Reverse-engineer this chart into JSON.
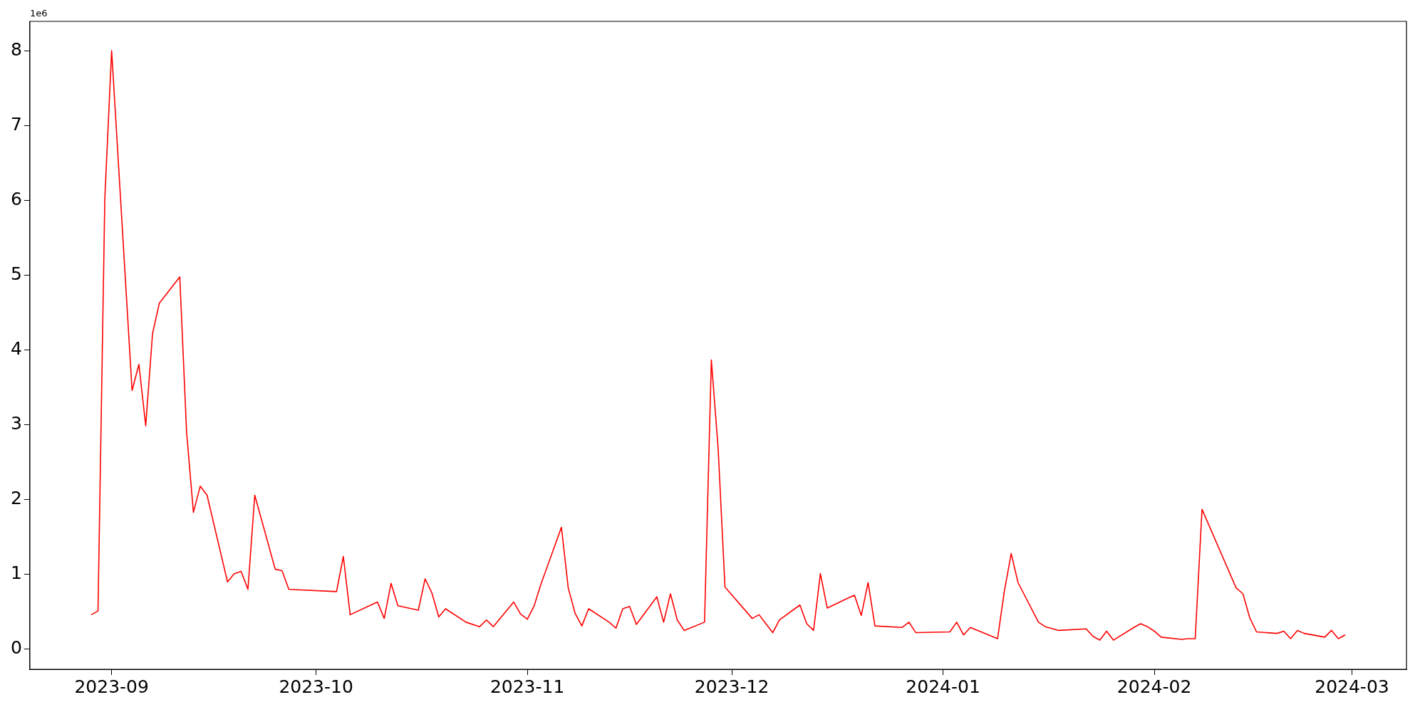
{
  "chart_data": {
    "type": "line",
    "x": [
      "2023-08-29",
      "2023-08-30",
      "2023-08-31",
      "2023-09-01",
      "2023-09-04",
      "2023-09-05",
      "2023-09-06",
      "2023-09-07",
      "2023-09-08",
      "2023-09-11",
      "2023-09-12",
      "2023-09-13",
      "2023-09-14",
      "2023-09-15",
      "2023-09-18",
      "2023-09-19",
      "2023-09-20",
      "2023-09-21",
      "2023-09-22",
      "2023-09-25",
      "2023-09-26",
      "2023-09-27",
      "2023-10-04",
      "2023-10-05",
      "2023-10-06",
      "2023-10-10",
      "2023-10-11",
      "2023-10-12",
      "2023-10-13",
      "2023-10-16",
      "2023-10-17",
      "2023-10-18",
      "2023-10-19",
      "2023-10-20",
      "2023-10-23",
      "2023-10-25",
      "2023-10-26",
      "2023-10-27",
      "2023-10-30",
      "2023-10-31",
      "2023-11-01",
      "2023-11-02",
      "2023-11-03",
      "2023-11-06",
      "2023-11-07",
      "2023-11-08",
      "2023-11-09",
      "2023-11-10",
      "2023-11-13",
      "2023-11-14",
      "2023-11-15",
      "2023-11-16",
      "2023-11-17",
      "2023-11-20",
      "2023-11-21",
      "2023-11-22",
      "2023-11-23",
      "2023-11-24",
      "2023-11-27",
      "2023-11-28",
      "2023-11-29",
      "2023-11-30",
      "2023-12-04",
      "2023-12-05",
      "2023-12-06",
      "2023-12-07",
      "2023-12-08",
      "2023-12-11",
      "2023-12-12",
      "2023-12-13",
      "2023-12-14",
      "2023-12-15",
      "2023-12-18",
      "2023-12-19",
      "2023-12-20",
      "2023-12-21",
      "2023-12-22",
      "2023-12-26",
      "2023-12-27",
      "2023-12-28",
      "2024-01-02",
      "2024-01-03",
      "2024-01-04",
      "2024-01-05",
      "2024-01-09",
      "2024-01-10",
      "2024-01-11",
      "2024-01-12",
      "2024-01-15",
      "2024-01-16",
      "2024-01-18",
      "2024-01-22",
      "2024-01-23",
      "2024-01-24",
      "2024-01-25",
      "2024-01-26",
      "2024-01-29",
      "2024-01-30",
      "2024-01-31",
      "2024-02-01",
      "2024-02-02",
      "2024-02-05",
      "2024-02-06",
      "2024-02-07",
      "2024-02-08",
      "2024-02-13",
      "2024-02-14",
      "2024-02-15",
      "2024-02-16",
      "2024-02-19",
      "2024-02-20",
      "2024-02-21",
      "2024-02-22",
      "2024-02-23",
      "2024-02-26",
      "2024-02-27",
      "2024-02-28",
      "2024-02-29"
    ],
    "series": [
      {
        "color": "#ff0000",
        "values": [
          0.46,
          0.51,
          6.03,
          8.01,
          3.46,
          3.81,
          2.99,
          4.22,
          4.63,
          4.98,
          2.9,
          1.83,
          2.18,
          2.06,
          0.9,
          1.01,
          1.04,
          0.8,
          2.06,
          1.07,
          1.05,
          0.8,
          0.77,
          1.24,
          0.46,
          0.63,
          0.41,
          0.88,
          0.58,
          0.52,
          0.94,
          0.75,
          0.43,
          0.54,
          0.36,
          0.3,
          0.39,
          0.3,
          0.63,
          0.47,
          0.4,
          0.58,
          0.87,
          1.63,
          0.82,
          0.48,
          0.31,
          0.54,
          0.36,
          0.28,
          0.54,
          0.57,
          0.33,
          0.7,
          0.36,
          0.74,
          0.39,
          0.25,
          0.36,
          3.87,
          2.68,
          0.83,
          0.41,
          0.46,
          0.34,
          0.22,
          0.39,
          0.59,
          0.34,
          0.25,
          1.01,
          0.55,
          0.68,
          0.72,
          0.45,
          0.89,
          0.31,
          0.29,
          0.36,
          0.22,
          0.23,
          0.36,
          0.19,
          0.29,
          0.14,
          0.78,
          1.28,
          0.89,
          0.36,
          0.3,
          0.25,
          0.27,
          0.17,
          0.12,
          0.24,
          0.12,
          0.29,
          0.34,
          0.3,
          0.24,
          0.16,
          0.13,
          0.14,
          0.14,
          1.87,
          0.82,
          0.74,
          0.42,
          0.23,
          0.21,
          0.24,
          0.14,
          0.25,
          0.21,
          0.16,
          0.25,
          0.14,
          0.19
        ]
      }
    ],
    "xlim": [
      "2023-08-20",
      "2024-03-09"
    ],
    "xticks": [
      {
        "value": "2023-09-01",
        "label": "2023-09"
      },
      {
        "value": "2023-10-01",
        "label": "2023-10"
      },
      {
        "value": "2023-11-01",
        "label": "2023-11"
      },
      {
        "value": "2023-12-01",
        "label": "2023-12"
      },
      {
        "value": "2024-01-01",
        "label": "2024-01"
      },
      {
        "value": "2024-02-01",
        "label": "2024-02"
      },
      {
        "value": "2024-03-01",
        "label": "2024-03"
      }
    ],
    "ylim": [
      -0.27,
      8.4
    ],
    "yticks": [
      0,
      1,
      2,
      3,
      4,
      5,
      6,
      7,
      8
    ],
    "annotations": [
      "1e6"
    ],
    "marker": "none",
    "line_style": "solid",
    "legend": false
  }
}
